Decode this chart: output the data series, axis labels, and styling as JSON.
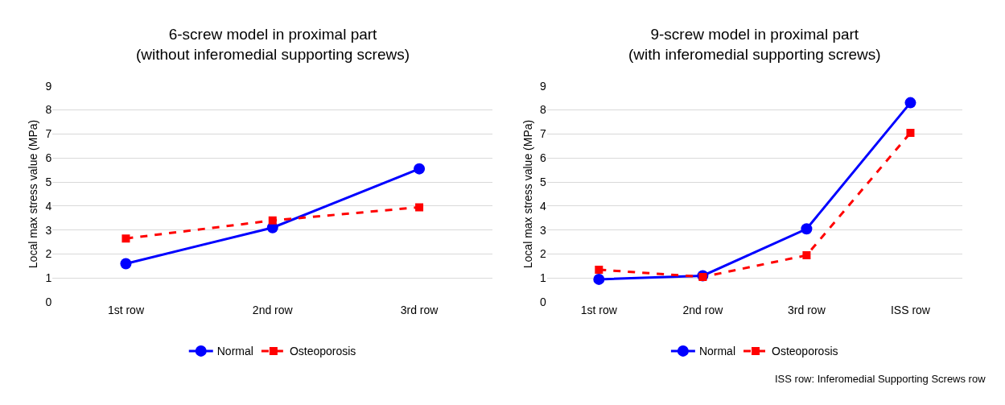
{
  "chart_data": [
    {
      "type": "line",
      "title": "6-screw model in proximal part\n(without inferomedial supporting screws)",
      "ylabel": "Local max stress value (MPa)",
      "categories": [
        "1st row",
        "2nd row",
        "3rd row"
      ],
      "series": [
        {
          "name": "Normal",
          "color": "#0000ff",
          "values": [
            1.6,
            3.1,
            5.55
          ],
          "marker": "circle",
          "line_style": "solid"
        },
        {
          "name": "Osteoporosis",
          "color": "#ff0000",
          "values": [
            2.65,
            3.4,
            3.95
          ],
          "marker": "square",
          "line_style": "dashed"
        }
      ],
      "ylim": [
        0,
        9
      ],
      "yticks": [
        0,
        1,
        2,
        3,
        4,
        5,
        6,
        7,
        8,
        9
      ],
      "grid": "y",
      "legend": "bottom"
    },
    {
      "type": "line",
      "title": "9-screw model in proximal part\n(with inferomedial supporting screws)",
      "ylabel": "Local max stress value (MPa)",
      "categories": [
        "1st row",
        "2nd row",
        "3rd row",
        "ISS row"
      ],
      "series": [
        {
          "name": "Normal",
          "color": "#0000ff",
          "values": [
            0.95,
            1.1,
            3.05,
            8.3
          ],
          "marker": "circle",
          "line_style": "solid"
        },
        {
          "name": "Osteoporosis",
          "color": "#ff0000",
          "values": [
            1.35,
            1.05,
            1.95,
            7.05
          ],
          "marker": "square",
          "line_style": "dashed"
        }
      ],
      "ylim": [
        0,
        9
      ],
      "yticks": [
        0,
        1,
        2,
        3,
        4,
        5,
        6,
        7,
        8,
        9
      ],
      "grid": "y",
      "legend": "bottom",
      "annotations": [
        "ISS row: Inferomedial Supporting Screws row"
      ]
    }
  ]
}
